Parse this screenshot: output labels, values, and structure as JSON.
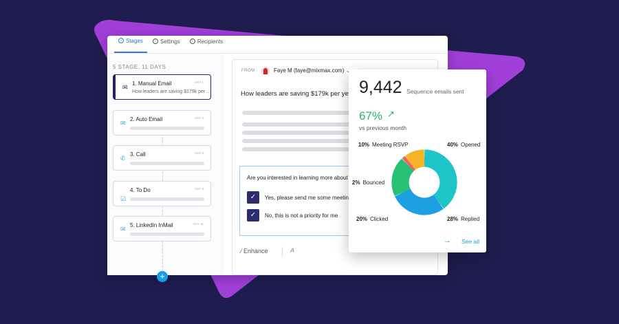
{
  "colors": {
    "background": "#1f1c4f",
    "triangle": "#a13fd9",
    "accent": "#1a9ce6",
    "active_stage": "#25235c",
    "positive": "#27b36c"
  },
  "tabs": [
    {
      "label": "Stages",
      "icon": "info-circle-icon",
      "active": true
    },
    {
      "label": "Settings",
      "icon": "info-circle-icon",
      "active": false
    },
    {
      "label": "Recipients",
      "icon": "info-circle-icon",
      "active": false
    }
  ],
  "stages": {
    "heading": "5 STAGE, 11 DAYS",
    "items": [
      {
        "title": "1. Manual Email",
        "day": "DAY 1",
        "subtitle": "How leaders are saving $179k per ...",
        "icon": "email-icon"
      },
      {
        "title": "2. Auto Email",
        "day": "DAY 3",
        "subtitle": "",
        "icon": "email-icon"
      },
      {
        "title": "3. Call",
        "day": "DAY 6",
        "subtitle": "",
        "icon": "phone-icon"
      },
      {
        "title": "4. To Do",
        "day": "DAY 9",
        "subtitle": "",
        "icon": "check-icon"
      },
      {
        "title": "5. LinkedIn InMail",
        "day": "DAY 11",
        "subtitle": "",
        "icon": "email-icon"
      }
    ],
    "add_label": "+"
  },
  "email": {
    "from_label": "FROM :",
    "from_value": "Faye M (faye@mixmax.com)",
    "subject": "How leaders are saving $179k per year",
    "question": "Are you interested in learning more about l",
    "options": [
      "Yes, please send me some meeting",
      "No, this is not a priority for me"
    ],
    "enhance_label": "Enhance"
  },
  "stats": {
    "count": "9,442",
    "count_label": "Sequence emails sent",
    "change": "67%",
    "change_label": "vs previous month",
    "see_all": "See all"
  },
  "chart_data": {
    "type": "pie",
    "donut": true,
    "slices": [
      {
        "label": "Opened",
        "value": 40,
        "display": "40%",
        "color": "#1fc4c8"
      },
      {
        "label": "Replied",
        "value": 28,
        "display": "28%",
        "color": "#1d9fe2"
      },
      {
        "label": "Clicked",
        "value": 20,
        "display": "20%",
        "color": "#27c175"
      },
      {
        "label": "Bounced",
        "value": 2,
        "display": "2%",
        "color": "#ef6461"
      },
      {
        "label": "Meeting RSVP",
        "value": 10,
        "display": "10%",
        "color": "#f5b427"
      }
    ]
  }
}
